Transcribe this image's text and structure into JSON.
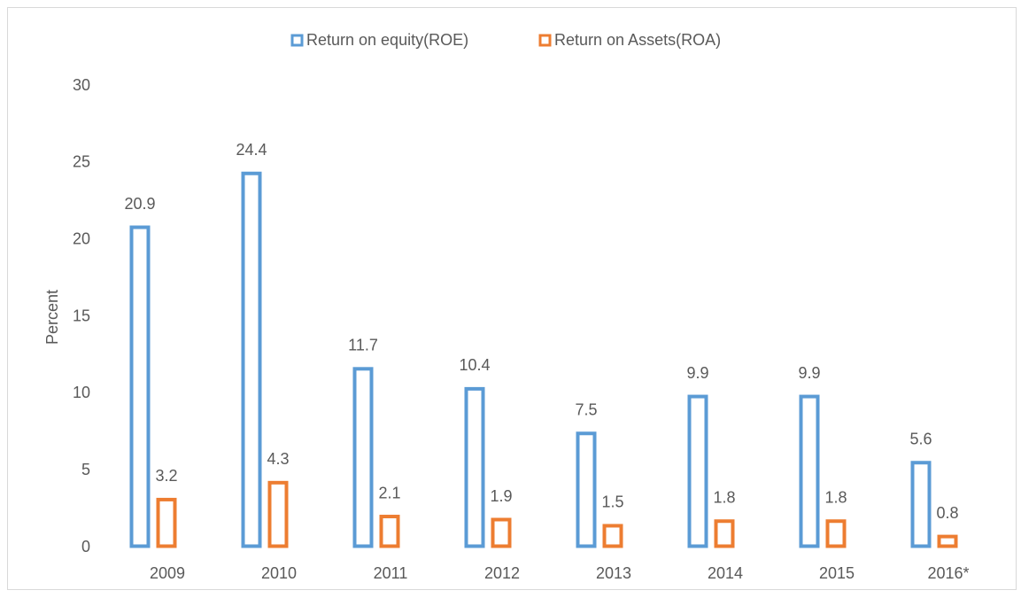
{
  "chart_data": {
    "type": "bar",
    "y_label": "Percent",
    "categories": [
      "2009",
      "2010",
      "2011",
      "2012",
      "2013",
      "2014",
      "2015",
      "2016*"
    ],
    "series": [
      {
        "name": "Return on equity(ROE)",
        "color": "#5b9bd5",
        "values": [
          20.9,
          24.4,
          11.7,
          10.4,
          7.5,
          9.9,
          9.9,
          5.6
        ]
      },
      {
        "name": "Return on Assets(ROA)",
        "color": "#ed7d31",
        "values": [
          3.2,
          4.3,
          2.1,
          1.9,
          1.5,
          1.8,
          1.8,
          0.8
        ]
      }
    ],
    "ylim": [
      0,
      30
    ],
    "yticks": [
      0,
      5,
      10,
      15,
      20,
      25,
      30
    ],
    "grid": false,
    "legend": "top"
  }
}
